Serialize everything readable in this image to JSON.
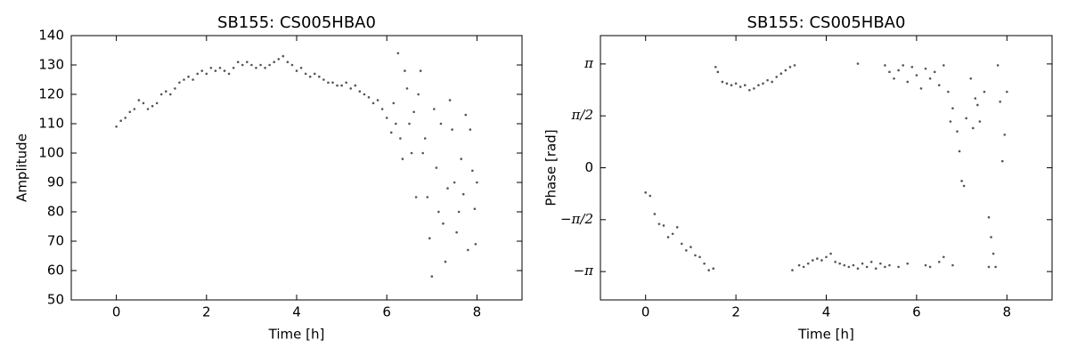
{
  "chart_data": [
    {
      "type": "scatter",
      "title": "SB155: CS005HBA0",
      "xlabel": "Time [h]",
      "ylabel": "Amplitude",
      "color": "#555555",
      "xlim": [
        -1,
        9
      ],
      "ylim": [
        50,
        140
      ],
      "xticks": [
        0,
        2,
        4,
        6,
        8
      ],
      "yticks": [
        50,
        60,
        70,
        80,
        90,
        100,
        110,
        120,
        130,
        140
      ],
      "x": [
        0.0,
        0.1,
        0.2,
        0.3,
        0.4,
        0.5,
        0.6,
        0.7,
        0.8,
        0.9,
        1.0,
        1.1,
        1.2,
        1.3,
        1.4,
        1.5,
        1.6,
        1.7,
        1.8,
        1.9,
        2.0,
        2.1,
        2.2,
        2.3,
        2.4,
        2.5,
        2.6,
        2.7,
        2.8,
        2.9,
        3.0,
        3.1,
        3.2,
        3.3,
        3.4,
        3.5,
        3.6,
        3.7,
        3.8,
        3.9,
        4.0,
        4.1,
        4.2,
        4.3,
        4.4,
        4.5,
        4.6,
        4.7,
        4.8,
        4.9,
        5.0,
        5.1,
        5.2,
        5.3,
        5.4,
        5.5,
        5.6,
        5.7,
        5.8,
        5.9,
        6.0,
        6.1,
        6.2,
        6.3,
        6.4,
        6.5,
        6.6,
        6.7,
        6.8,
        6.9,
        7.0,
        7.1,
        7.2,
        7.3,
        7.4,
        7.5,
        7.6,
        7.7,
        7.8,
        7.9,
        8.0,
        6.25,
        6.45,
        6.55,
        6.75,
        6.85,
        6.95,
        7.05,
        7.15,
        7.25,
        7.35,
        7.45,
        7.55,
        7.65,
        7.75,
        7.85,
        7.95,
        6.15,
        6.35,
        6.65,
        7.97
      ],
      "values": [
        109,
        111,
        112,
        114,
        115,
        118,
        117,
        115,
        116,
        117,
        120,
        121,
        120,
        122,
        124,
        125,
        126,
        125,
        127,
        128,
        127,
        129,
        128,
        129,
        128,
        127,
        129,
        131,
        130,
        131,
        130,
        129,
        130,
        129,
        130,
        131,
        132,
        133,
        131,
        130,
        128,
        129,
        127,
        126,
        127,
        126,
        125,
        124,
        124,
        123,
        123,
        124,
        122,
        123,
        121,
        120,
        119,
        117,
        118,
        115,
        112,
        107,
        110,
        105,
        128,
        110,
        114,
        120,
        100,
        85,
        58,
        95,
        110,
        63,
        118,
        90,
        80,
        86,
        67,
        94,
        90,
        134,
        122,
        100,
        128,
        105,
        71,
        115,
        80,
        76,
        88,
        108,
        73,
        98,
        113,
        108,
        81,
        117,
        98,
        85,
        69
      ]
    },
    {
      "type": "scatter",
      "title": "SB155: CS005HBA0",
      "xlabel": "Time [h]",
      "ylabel": "Phase [rad]",
      "color": "#555555",
      "xlim": [
        -1,
        9
      ],
      "ylim": [
        -4,
        4
      ],
      "xticks": [
        0,
        2,
        4,
        6,
        8
      ],
      "yticks": [
        {
          "value": -3.141592653589793,
          "label": "−π"
        },
        {
          "value": -1.5707963267948966,
          "label": "−π/2"
        },
        0,
        {
          "value": 1.5707963267948966,
          "label": "π/2"
        },
        {
          "value": 3.141592653589793,
          "label": "π"
        }
      ],
      "x": [
        0.0,
        0.1,
        0.2,
        0.3,
        0.4,
        0.5,
        0.6,
        0.7,
        0.8,
        0.9,
        1.0,
        1.1,
        1.2,
        1.3,
        1.4,
        1.5,
        1.55,
        1.6,
        1.7,
        1.8,
        1.9,
        2.0,
        2.1,
        2.2,
        2.3,
        2.4,
        2.5,
        2.6,
        2.7,
        2.8,
        2.9,
        3.0,
        3.1,
        3.2,
        3.3,
        3.25,
        3.4,
        3.5,
        3.6,
        3.7,
        3.8,
        3.9,
        4.0,
        4.1,
        4.2,
        4.3,
        4.4,
        4.5,
        4.6,
        4.7,
        4.8,
        4.9,
        5.0,
        5.1,
        5.2,
        5.3,
        5.4,
        5.6,
        5.8,
        6.2,
        6.3,
        6.5,
        6.6,
        6.8,
        4.7,
        5.3,
        5.4,
        5.5,
        5.6,
        5.7,
        5.8,
        5.9,
        6.0,
        6.1,
        6.2,
        6.3,
        6.4,
        6.5,
        6.6,
        6.7,
        6.8,
        6.9,
        7.0,
        7.05,
        7.1,
        7.2,
        7.3,
        7.4,
        7.5,
        7.6,
        7.65,
        7.7,
        7.75,
        7.8,
        7.85,
        7.9,
        7.95,
        8.0,
        6.95,
        7.35,
        7.25,
        6.75,
        7.6
      ],
      "values": [
        -0.75,
        -0.85,
        -1.4,
        -1.7,
        -1.75,
        -2.1,
        -2.0,
        -1.8,
        -2.3,
        -2.5,
        -2.4,
        -2.65,
        -2.7,
        -2.9,
        -3.1,
        -3.05,
        3.05,
        2.9,
        2.6,
        2.55,
        2.5,
        2.55,
        2.45,
        2.5,
        2.35,
        2.4,
        2.5,
        2.55,
        2.65,
        2.6,
        2.75,
        2.85,
        2.95,
        3.05,
        3.1,
        -3.1,
        -2.95,
        -3.0,
        -2.9,
        -2.8,
        -2.75,
        -2.8,
        -2.7,
        -2.6,
        -2.85,
        -2.9,
        -2.95,
        -3.0,
        -2.95,
        -3.05,
        -2.9,
        -3.0,
        -2.85,
        -3.05,
        -2.9,
        -3.0,
        -2.95,
        -3.0,
        -2.9,
        -2.95,
        -3.0,
        -2.85,
        -2.7,
        -2.95,
        3.15,
        3.1,
        2.9,
        2.7,
        2.95,
        3.1,
        2.6,
        3.05,
        2.8,
        2.4,
        3.0,
        2.7,
        2.9,
        2.5,
        3.1,
        2.3,
        1.8,
        1.1,
        -0.4,
        -0.55,
        1.5,
        2.7,
        2.1,
        1.4,
        2.3,
        -1.5,
        -2.1,
        -2.6,
        -3.0,
        3.1,
        2.0,
        0.2,
        1.0,
        2.3,
        0.5,
        1.9,
        1.2,
        1.4,
        -3.0
      ]
    }
  ]
}
